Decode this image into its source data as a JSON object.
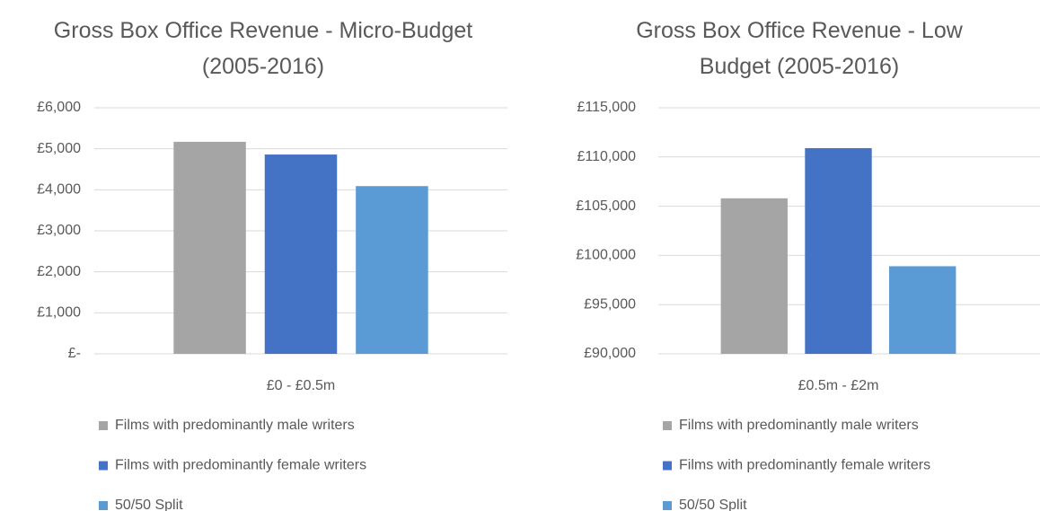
{
  "chart_data": [
    {
      "type": "bar",
      "title": "Gross Box Office Revenue - Micro-Budget (2005-2016)",
      "categories": [
        "£0 - £0.5m"
      ],
      "series": [
        {
          "name": "Films with predominantly male writers",
          "color": "#a5a5a5",
          "values": [
            5170
          ]
        },
        {
          "name": "Films with predominantly female writers",
          "color": "#4472c4",
          "values": [
            4860
          ]
        },
        {
          "name": "50/50 Split",
          "color": "#5b9bd5",
          "values": [
            4090
          ]
        }
      ],
      "ylim": [
        0,
        6000
      ],
      "yticks": [
        {
          "value": 0,
          "label": "£-"
        },
        {
          "value": 1000,
          "label": "£1,000"
        },
        {
          "value": 2000,
          "label": "£2,000"
        },
        {
          "value": 3000,
          "label": "£3,000"
        },
        {
          "value": 4000,
          "label": "£4,000"
        },
        {
          "value": 5000,
          "label": "£5,000"
        },
        {
          "value": 6000,
          "label": "£6,000"
        }
      ],
      "grid": true,
      "legend": "bottom"
    },
    {
      "type": "bar",
      "title": "Gross Box Office Revenue - Low Budget (2005-2016)",
      "categories": [
        "£0.5m - £2m"
      ],
      "series": [
        {
          "name": "Films with predominantly male writers",
          "color": "#a5a5a5",
          "values": [
            105800
          ]
        },
        {
          "name": "Films with predominantly female writers",
          "color": "#4472c4",
          "values": [
            110900
          ]
        },
        {
          "name": "50/50 Split",
          "color": "#5b9bd5",
          "values": [
            98900
          ]
        }
      ],
      "ylim": [
        90000,
        115000
      ],
      "yticks": [
        {
          "value": 90000,
          "label": "£90,000"
        },
        {
          "value": 95000,
          "label": "£95,000"
        },
        {
          "value": 100000,
          "label": "£100,000"
        },
        {
          "value": 105000,
          "label": "£105,000"
        },
        {
          "value": 110000,
          "label": "£110,000"
        },
        {
          "value": 115000,
          "label": "£115,000"
        }
      ],
      "grid": true,
      "legend": "bottom"
    }
  ]
}
